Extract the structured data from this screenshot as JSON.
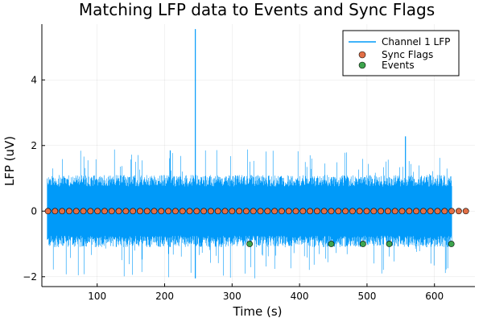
{
  "chart_data": {
    "type": "line",
    "title": "Matching LFP data to Events and Sync Flags",
    "xlabel": "Time (s)",
    "ylabel": "LFP (uV)",
    "xlim": [
      18,
      660
    ],
    "ylim": [
      -2.3,
      5.7
    ],
    "x_ticks": [
      100,
      200,
      300,
      400,
      500,
      600
    ],
    "y_ticks": [
      -2,
      0,
      2,
      4
    ],
    "grid": true,
    "legend_position": "top-right",
    "colors": {
      "lfp": "#009af9",
      "sync": "#e26f46",
      "events": "#3da44d"
    },
    "series": [
      {
        "name": "Channel 1 LFP",
        "kind": "line",
        "x_range": [
          26,
          626
        ],
        "typical_band": [
          -1.1,
          1.1
        ],
        "extreme_band": [
          -2.05,
          1.9
        ],
        "spikes": [
          {
            "x": 245.5,
            "y": 5.55
          },
          {
            "x": 245.5,
            "y": -2.05
          },
          {
            "x": 557,
            "y": 2.28
          }
        ]
      },
      {
        "name": "Sync Flags",
        "kind": "scatter",
        "x": [
          27,
          37.5,
          48,
          58.5,
          69,
          79.5,
          90,
          100.5,
          111,
          121.5,
          132,
          142.5,
          153,
          163.5,
          174,
          184.5,
          195,
          205.5,
          216,
          226.5,
          237,
          247.5,
          258,
          268.5,
          279,
          289.5,
          300,
          310.5,
          321,
          331.5,
          342,
          352.5,
          363,
          373.5,
          384,
          394.5,
          405,
          415.5,
          426,
          436.5,
          447,
          457.5,
          468,
          478.5,
          489,
          499.5,
          510,
          520.5,
          531,
          541.5,
          552,
          562.5,
          573,
          583.5,
          594,
          604.5,
          615,
          625.5,
          636,
          646.5
        ],
        "y": 0
      },
      {
        "name": "Events",
        "kind": "scatter",
        "x": [
          326,
          447,
          494,
          533,
          625
        ],
        "y": -1
      }
    ]
  }
}
